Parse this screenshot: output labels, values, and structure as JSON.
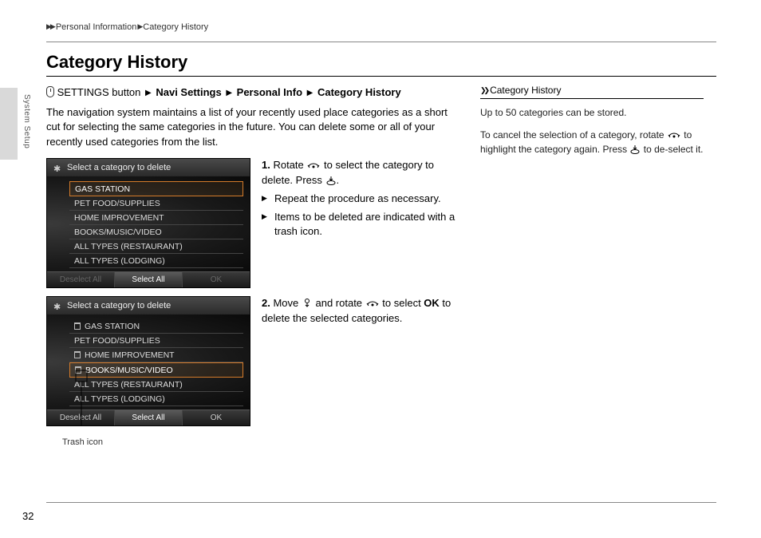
{
  "breadcrumb": {
    "part1": "Personal Information",
    "part2": "Category History"
  },
  "title": "Category History",
  "sideTab": "System Setup",
  "navPath": {
    "prefix": "SETTINGS button",
    "p1": "Navi Settings",
    "p2": "Personal Info",
    "p3": "Category History"
  },
  "intro": "The navigation system maintains a list of your recently used place categories as a short cut for selecting the same categories in the future. You can delete some or all of your recently used categories from the list.",
  "screenshot1": {
    "header": "Select a category to delete",
    "items": [
      "GAS STATION",
      "PET FOOD/SUPPLIES",
      "HOME IMPROVEMENT",
      "BOOKS/MUSIC/VIDEO",
      "ALL TYPES (RESTAURANT)",
      "ALL TYPES (LODGING)"
    ],
    "selectedIndex": 0,
    "footer": {
      "left": "Deselect All",
      "mid": "Select All",
      "right": "OK"
    }
  },
  "screenshot2": {
    "header": "Select a category to delete",
    "items": [
      "GAS STATION",
      "PET FOOD/SUPPLIES",
      "HOME IMPROVEMENT",
      "BOOKS/MUSIC/VIDEO",
      "ALL TYPES (RESTAURANT)",
      "ALL TYPES (LODGING)"
    ],
    "trashIndices": [
      0,
      2,
      3
    ],
    "selectedIndex": 3,
    "footer": {
      "left": "Deselect All",
      "mid": "Select All",
      "right": "OK"
    }
  },
  "step1": {
    "num": "1.",
    "text1a": "Rotate ",
    "text1b": " to select the category to delete. Press ",
    "text1c": ".",
    "sub1": "Repeat the procedure as necessary.",
    "sub2": "Items to be deleted are indicated with a trash icon."
  },
  "step2": {
    "num": "2.",
    "text2a": "Move ",
    "text2b": " and rotate ",
    "text2c": " to select ",
    "ok": "OK",
    "text2d": " to delete the selected categories."
  },
  "caption": "Trash icon",
  "sidebar": {
    "title": "Category History",
    "p1": "Up to 50 categories can be stored.",
    "p2a": "To cancel the selection of a category, rotate ",
    "p2b": " to highlight the category again. Press ",
    "p2c": " to de-select it."
  },
  "pageNum": "32"
}
